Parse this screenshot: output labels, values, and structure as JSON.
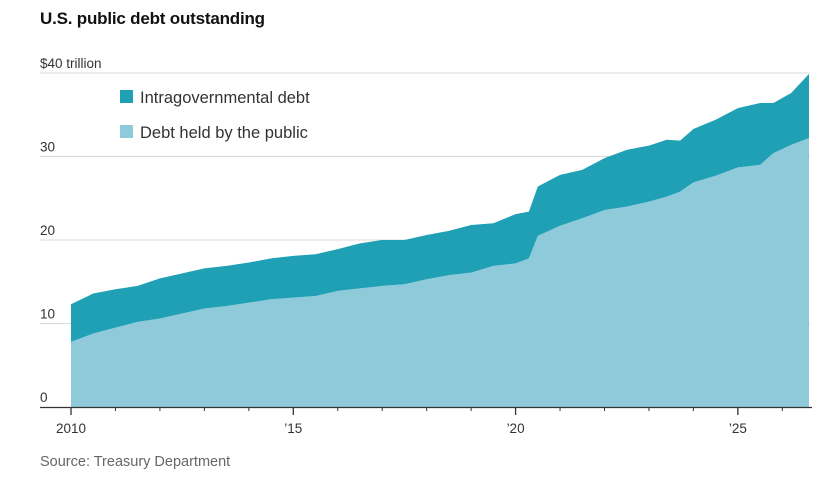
{
  "title": "U.S. public debt outstanding",
  "source": "Source: Treasury Department",
  "chart_data": {
    "type": "area",
    "stacked": true,
    "y_unit_label": "$40 trillion",
    "y_ticks": [
      {
        "value": 0,
        "label": "0"
      },
      {
        "value": 10,
        "label": "10"
      },
      {
        "value": 20,
        "label": "20"
      },
      {
        "value": 30,
        "label": "30"
      },
      {
        "value": 40,
        "label": "$40 trillion"
      }
    ],
    "x_ticks": [
      {
        "value": 2010,
        "label": "2010"
      },
      {
        "value": 2015,
        "label": "’15"
      },
      {
        "value": 2020,
        "label": "’20"
      },
      {
        "value": 2025,
        "label": "’25"
      }
    ],
    "xlim": [
      2010,
      2026.6
    ],
    "ylim": [
      0,
      40
    ],
    "grid": true,
    "legend_position": "top-left",
    "x": [
      2010.0,
      2010.5,
      2011.0,
      2011.5,
      2012.0,
      2012.5,
      2013.0,
      2013.5,
      2014.0,
      2014.5,
      2015.0,
      2015.5,
      2016.0,
      2016.5,
      2017.0,
      2017.5,
      2018.0,
      2018.5,
      2019.0,
      2019.5,
      2020.0,
      2020.3,
      2020.5,
      2021.0,
      2021.5,
      2022.0,
      2022.5,
      2023.0,
      2023.4,
      2023.7,
      2024.0,
      2024.5,
      2025.0,
      2025.5,
      2025.8,
      2026.2,
      2026.6
    ],
    "series": [
      {
        "name": "Debt held by the public",
        "color": "#8ecad9",
        "values": [
          7.8,
          8.8,
          9.5,
          10.2,
          10.6,
          11.2,
          11.8,
          12.1,
          12.5,
          12.9,
          13.1,
          13.3,
          13.9,
          14.2,
          14.5,
          14.7,
          15.3,
          15.8,
          16.1,
          16.9,
          17.2,
          17.8,
          20.5,
          21.7,
          22.6,
          23.6,
          24.0,
          24.6,
          25.2,
          25.8,
          26.9,
          27.7,
          28.7,
          29.0,
          30.4,
          31.4,
          32.2
        ]
      },
      {
        "name": "Intragovernmental debt",
        "color": "#1fa0b5",
        "values": [
          4.5,
          4.8,
          4.6,
          4.3,
          4.8,
          4.8,
          4.8,
          4.8,
          4.8,
          4.9,
          5.0,
          5.0,
          5.0,
          5.4,
          5.5,
          5.3,
          5.3,
          5.3,
          5.7,
          5.1,
          5.9,
          5.6,
          5.9,
          6.1,
          5.8,
          6.2,
          6.8,
          6.7,
          6.8,
          6.1,
          6.4,
          6.7,
          7.1,
          7.4,
          6.0,
          6.2,
          7.7
        ]
      }
    ],
    "legend": [
      {
        "name": "Intragovernmental debt",
        "color": "#1fa0b5"
      },
      {
        "name": "Debt held by the public",
        "color": "#8ecad9"
      }
    ]
  }
}
